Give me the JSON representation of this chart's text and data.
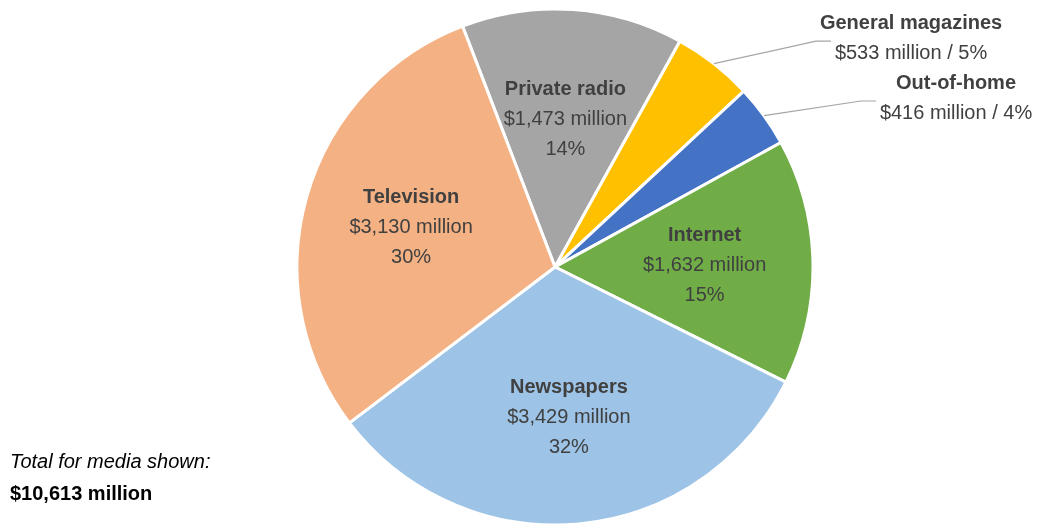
{
  "chart_data": {
    "type": "pie",
    "categories": [
      "Private radio",
      "General magazines",
      "Out-of-home",
      "Internet",
      "Newspapers",
      "Television"
    ],
    "values": [
      1473000000,
      533000000,
      416000000,
      1632000000,
      3429000000,
      3130000000
    ],
    "colors": [
      "#a5a5a5",
      "#ffc000",
      "#4472c4",
      "#70ad47",
      "#9dc3e6",
      "#f4b183"
    ],
    "value_labels": [
      "$1,473 million\n14%",
      "$533 million / 5%",
      "$416 million / 4%",
      "$1,632 million\n15%",
      "$3,429 million\n32%",
      "$3,130 million\n30%"
    ],
    "annotations": [
      "Total for media shown:",
      "$10,613 million"
    ]
  }
}
